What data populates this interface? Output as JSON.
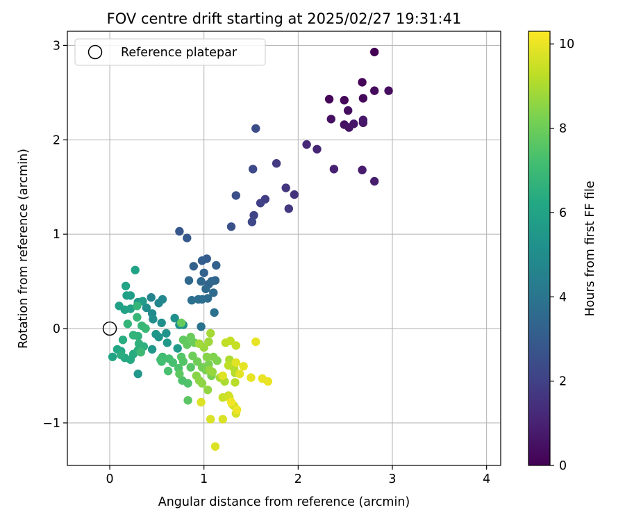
{
  "chart_data": {
    "type": "scatter",
    "title": "FOV centre drift starting at 2025/02/27 19:31:41",
    "xlabel": "Angular distance from reference (arcmin)",
    "ylabel": "Rotation from reference (arcmin)",
    "xlim": [
      -0.45,
      4.15
    ],
    "ylim": [
      -1.45,
      3.15
    ],
    "xticks": [
      0,
      1,
      2,
      3,
      4
    ],
    "xtick_labels": [
      "0",
      "1",
      "2",
      "3",
      "4"
    ],
    "yticks": [
      -1,
      0,
      1,
      2,
      3
    ],
    "ytick_labels": [
      "−1",
      "0",
      "1",
      "2",
      "3"
    ],
    "grid": true,
    "legend": {
      "placement": "top-left",
      "entries": [
        {
          "label": "Reference platepar",
          "marker": "open-circle",
          "color": "#000000"
        }
      ]
    },
    "reference_point": {
      "x": 0,
      "y": 0
    },
    "colorbar": {
      "label": "Hours from first FF file",
      "colormap": "viridis",
      "range": [
        0,
        10.3
      ],
      "ticks": [
        0,
        2,
        4,
        6,
        8,
        10
      ],
      "tick_labels": [
        "0",
        "2",
        "4",
        "6",
        "8",
        "10"
      ]
    },
    "points": [
      [
        2.81,
        2.93,
        0.0
      ],
      [
        2.68,
        2.61,
        0.1
      ],
      [
        2.33,
        2.43,
        0.15
      ],
      [
        2.49,
        2.42,
        0.2
      ],
      [
        2.69,
        2.44,
        0.25
      ],
      [
        2.81,
        2.52,
        0.3
      ],
      [
        2.96,
        2.52,
        0.35
      ],
      [
        2.53,
        2.31,
        0.4
      ],
      [
        2.35,
        2.22,
        0.45
      ],
      [
        2.49,
        2.16,
        0.5
      ],
      [
        2.54,
        2.13,
        0.55
      ],
      [
        2.59,
        2.17,
        0.6
      ],
      [
        2.69,
        2.18,
        0.65
      ],
      [
        2.69,
        2.21,
        0.7
      ],
      [
        2.68,
        1.68,
        0.8
      ],
      [
        2.81,
        1.56,
        0.85
      ],
      [
        2.38,
        1.69,
        0.95
      ],
      [
        2.2,
        1.9,
        1.1
      ],
      [
        2.09,
        1.95,
        1.2
      ],
      [
        1.96,
        1.42,
        1.5
      ],
      [
        1.87,
        1.49,
        1.6
      ],
      [
        1.9,
        1.27,
        1.7
      ],
      [
        1.77,
        1.75,
        1.8
      ],
      [
        1.65,
        1.37,
        1.9
      ],
      [
        1.6,
        1.33,
        2.0
      ],
      [
        1.53,
        1.2,
        2.1
      ],
      [
        1.51,
        1.13,
        2.2
      ],
      [
        1.52,
        1.69,
        2.3
      ],
      [
        1.55,
        2.12,
        2.4
      ],
      [
        1.34,
        1.41,
        2.5
      ],
      [
        1.29,
        1.08,
        2.6
      ],
      [
        0.74,
        1.03,
        2.8
      ],
      [
        0.82,
        0.96,
        2.9
      ],
      [
        1.03,
        0.74,
        3.0
      ],
      [
        0.98,
        0.72,
        3.1
      ],
      [
        1.13,
        0.67,
        3.15
      ],
      [
        0.89,
        0.66,
        3.2
      ],
      [
        1.0,
        0.59,
        3.25
      ],
      [
        1.05,
        0.47,
        3.3
      ],
      [
        1.12,
        0.51,
        3.35
      ],
      [
        1.08,
        0.5,
        3.4
      ],
      [
        0.97,
        0.5,
        3.45
      ],
      [
        0.84,
        0.51,
        3.5
      ],
      [
        1.02,
        0.42,
        3.55
      ],
      [
        1.1,
        0.38,
        3.6
      ],
      [
        1.04,
        0.32,
        3.65
      ],
      [
        0.98,
        0.31,
        3.7
      ],
      [
        0.94,
        0.31,
        3.75
      ],
      [
        0.87,
        0.3,
        3.8
      ],
      [
        1.11,
        0.17,
        3.85
      ],
      [
        0.97,
        0.02,
        3.9
      ],
      [
        0.44,
        0.33,
        4.6
      ],
      [
        0.52,
        0.27,
        4.7
      ],
      [
        0.56,
        0.31,
        4.8
      ],
      [
        0.45,
        0.16,
        4.9
      ],
      [
        0.39,
        0.22,
        5.0
      ],
      [
        0.46,
        0.1,
        5.05
      ],
      [
        0.55,
        0.06,
        5.1
      ],
      [
        0.69,
        0.11,
        5.15
      ],
      [
        0.74,
        0.04,
        5.2
      ],
      [
        0.78,
        0.04,
        5.25
      ],
      [
        0.6,
        -0.05,
        5.3
      ],
      [
        0.52,
        -0.09,
        5.35
      ],
      [
        0.49,
        -0.06,
        5.4
      ],
      [
        0.45,
        -0.22,
        5.45
      ],
      [
        0.3,
        -0.48,
        5.5
      ],
      [
        0.61,
        -0.15,
        5.55
      ],
      [
        0.72,
        -0.21,
        5.6
      ],
      [
        0.3,
        0.28,
        5.65
      ],
      [
        0.35,
        0.29,
        5.7
      ],
      [
        0.22,
        0.35,
        5.75
      ],
      [
        0.18,
        0.35,
        5.8
      ],
      [
        0.1,
        0.24,
        5.85
      ],
      [
        0.16,
        0.2,
        5.9
      ],
      [
        0.22,
        0.21,
        5.95
      ],
      [
        0.27,
        0.62,
        6.0
      ],
      [
        0.17,
        0.45,
        6.05
      ],
      [
        0.03,
        -0.3,
        6.1
      ],
      [
        0.08,
        -0.22,
        6.15
      ],
      [
        0.12,
        -0.24,
        6.2
      ],
      [
        0.16,
        -0.31,
        6.25
      ],
      [
        0.22,
        -0.33,
        6.3
      ],
      [
        0.25,
        -0.27,
        6.35
      ],
      [
        0.14,
        -0.12,
        6.4
      ],
      [
        0.12,
        -0.28,
        6.45
      ],
      [
        0.3,
        -0.23,
        6.5
      ],
      [
        0.36,
        -0.19,
        6.55
      ],
      [
        0.31,
        -0.16,
        6.6
      ],
      [
        0.3,
        -0.08,
        6.65
      ],
      [
        0.25,
        -0.07,
        6.7
      ],
      [
        0.19,
        0.05,
        6.75
      ],
      [
        0.29,
        0.24,
        6.8
      ],
      [
        0.29,
        0.12,
        6.85
      ],
      [
        0.34,
        0.03,
        6.9
      ],
      [
        0.38,
        0.0,
        6.95
      ],
      [
        0.33,
        -0.25,
        7.0
      ],
      [
        0.56,
        -0.3,
        7.05
      ],
      [
        0.54,
        -0.33,
        7.1
      ],
      [
        0.55,
        -0.35,
        7.15
      ],
      [
        0.63,
        -0.32,
        7.2
      ],
      [
        0.67,
        -0.36,
        7.25
      ],
      [
        0.62,
        -0.45,
        7.3
      ],
      [
        0.73,
        -0.42,
        7.35
      ],
      [
        0.77,
        -0.55,
        7.4
      ],
      [
        0.83,
        -0.58,
        7.45
      ],
      [
        0.78,
        -0.35,
        7.5
      ],
      [
        0.76,
        -0.3,
        7.55
      ],
      [
        0.86,
        -0.41,
        7.6
      ],
      [
        0.83,
        -0.76,
        7.65
      ],
      [
        0.74,
        -0.48,
        7.7
      ],
      [
        0.78,
        -0.12,
        7.75
      ],
      [
        0.82,
        -0.17,
        7.8
      ],
      [
        0.76,
        0.06,
        7.85
      ],
      [
        0.86,
        -0.09,
        7.9
      ],
      [
        0.9,
        -0.15,
        7.95
      ],
      [
        0.88,
        -0.29,
        8.0
      ],
      [
        0.93,
        -0.35,
        8.05
      ],
      [
        0.98,
        -0.41,
        8.1
      ],
      [
        1.02,
        -0.44,
        8.15
      ],
      [
        1.08,
        -0.5,
        8.2
      ],
      [
        1.05,
        -0.38,
        8.25
      ],
      [
        1.14,
        -0.34,
        8.3
      ],
      [
        1.1,
        -0.3,
        8.35
      ],
      [
        1.03,
        -0.3,
        8.4
      ],
      [
        0.92,
        -0.5,
        8.45
      ],
      [
        0.95,
        -0.55,
        8.5
      ],
      [
        0.98,
        -0.58,
        8.55
      ],
      [
        1.04,
        -0.65,
        8.6
      ],
      [
        1.06,
        -0.44,
        8.65
      ],
      [
        1.09,
        -0.46,
        8.7
      ],
      [
        1.0,
        -0.2,
        8.75
      ],
      [
        1.05,
        -0.14,
        8.8
      ],
      [
        0.95,
        -0.16,
        8.85
      ],
      [
        1.07,
        -0.05,
        8.9
      ],
      [
        1.17,
        -0.52,
        8.95
      ],
      [
        1.22,
        -0.56,
        9.0
      ],
      [
        1.27,
        -0.33,
        9.05
      ],
      [
        1.32,
        -0.42,
        9.1
      ],
      [
        1.33,
        -0.47,
        9.15
      ],
      [
        1.33,
        -0.57,
        9.2
      ],
      [
        1.26,
        -0.39,
        9.25
      ],
      [
        1.23,
        -0.15,
        9.3
      ],
      [
        1.28,
        -0.13,
        9.35
      ],
      [
        1.34,
        -0.18,
        9.4
      ],
      [
        1.2,
        -0.73,
        9.45
      ],
      [
        1.26,
        -0.71,
        9.5
      ],
      [
        1.3,
        -0.8,
        9.55
      ],
      [
        1.27,
        -0.73,
        9.6
      ],
      [
        1.32,
        -0.82,
        9.62
      ],
      [
        1.34,
        -0.9,
        9.65
      ],
      [
        1.07,
        -0.96,
        9.7
      ],
      [
        1.2,
        -0.96,
        9.72
      ],
      [
        1.12,
        -1.25,
        9.75
      ],
      [
        0.97,
        -0.78,
        9.78
      ],
      [
        1.2,
        -0.5,
        9.8
      ],
      [
        1.34,
        -0.36,
        9.85
      ],
      [
        1.38,
        -0.48,
        9.88
      ],
      [
        1.42,
        -0.4,
        9.9
      ],
      [
        1.5,
        -0.52,
        9.93
      ],
      [
        1.55,
        -0.14,
        9.95
      ],
      [
        1.62,
        -0.53,
        9.97
      ],
      [
        1.68,
        -0.56,
        10.0
      ],
      [
        1.35,
        -0.86,
        10.05
      ],
      [
        1.29,
        -0.78,
        10.1
      ]
    ]
  }
}
